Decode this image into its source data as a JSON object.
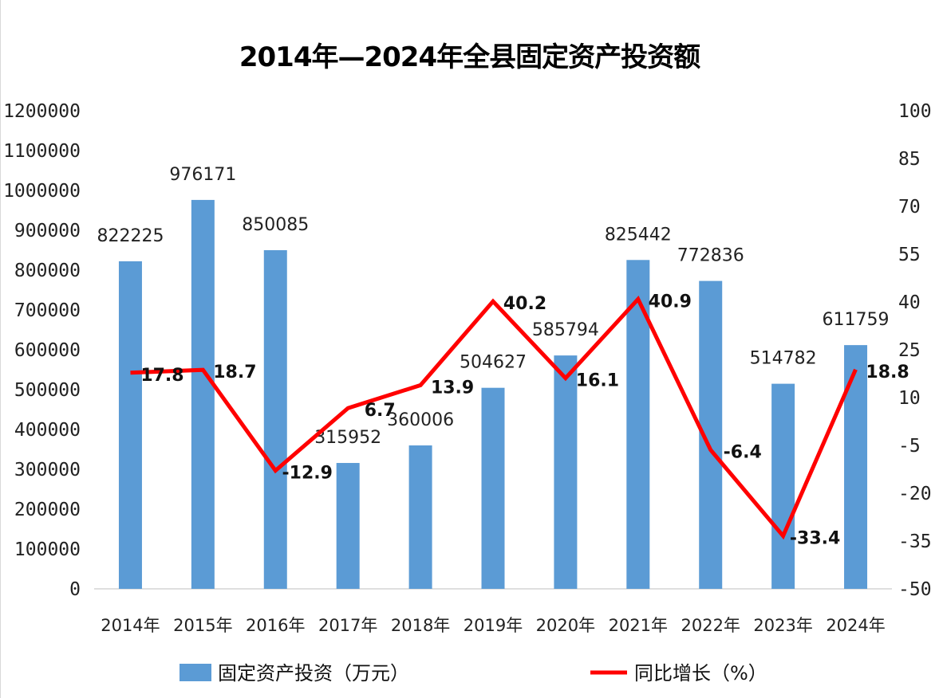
{
  "chart_data": {
    "type": "bar",
    "title": "2014年—2024年全县固定资产投资额",
    "categories": [
      "2014年",
      "2015年",
      "2016年",
      "2017年",
      "2018年",
      "2019年",
      "2020年",
      "2021年",
      "2022年",
      "2023年",
      "2024年"
    ],
    "series": [
      {
        "name": "固定资产投资（万元）",
        "type": "bar",
        "axis": "left",
        "color": "#5b9bd5",
        "values": [
          822225,
          976171,
          850085,
          315952,
          360006,
          504627,
          585794,
          825442,
          772836,
          514782,
          611759
        ],
        "labels": [
          "822225",
          "976171",
          "850085",
          "315952",
          "360006",
          "504627",
          "585794",
          "825442",
          "772836",
          "514782",
          "611759"
        ]
      },
      {
        "name": "同比增长（%）",
        "type": "line",
        "axis": "right",
        "color": "#ff0000",
        "values": [
          17.8,
          18.7,
          -12.9,
          6.7,
          13.9,
          40.2,
          16.1,
          40.9,
          -6.4,
          -33.4,
          18.8
        ],
        "labels": [
          "17.8",
          "18.7",
          "-12.9",
          "6.7",
          "13.9",
          "40.2",
          "16.1",
          "40.9",
          "-6.4",
          "-33.4",
          "18.8"
        ]
      }
    ],
    "y_left": {
      "ylim": [
        0,
        1200000
      ],
      "ticks": [
        "1200000",
        "1100000",
        "1000000",
        "900000",
        "800000",
        "700000",
        "600000",
        "500000",
        "400000",
        "300000",
        "200000",
        "100000",
        "0"
      ]
    },
    "y_right": {
      "ylim": [
        -50,
        100
      ],
      "ticks": [
        "100",
        "85",
        "70",
        "55",
        "40",
        "25",
        "10",
        "-5",
        "-20",
        "-35",
        "-50"
      ]
    },
    "grid": false,
    "legend_position": "bottom"
  }
}
